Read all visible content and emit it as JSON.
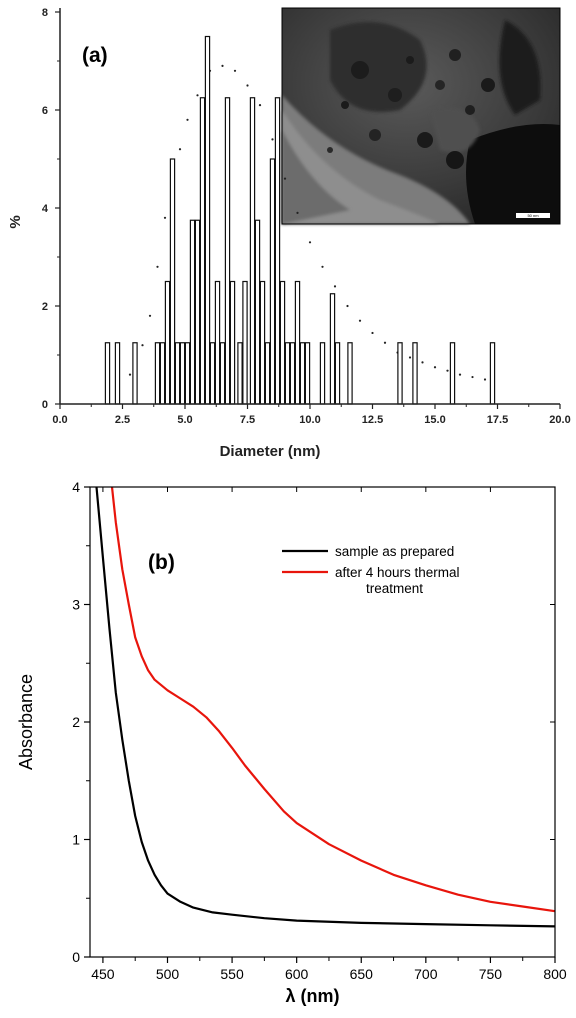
{
  "chart_data": [
    {
      "type": "bar",
      "panel_label": "(a)",
      "xlabel": "Diameter (nm)",
      "ylabel": "%",
      "xlim": [
        0,
        20
      ],
      "ylim": [
        0,
        8
      ],
      "xticks": [
        "0.0",
        "2.5",
        "5.0",
        "7.5",
        "10.0",
        "12.5",
        "15.0",
        "17.5",
        "20.0"
      ],
      "yticks": [
        "0",
        "2",
        "4",
        "6",
        "8"
      ],
      "bars": [
        {
          "x": 1.9,
          "y": 1.25
        },
        {
          "x": 2.3,
          "y": 1.25
        },
        {
          "x": 3.0,
          "y": 1.25
        },
        {
          "x": 3.9,
          "y": 1.25
        },
        {
          "x": 4.1,
          "y": 1.25
        },
        {
          "x": 4.3,
          "y": 2.5
        },
        {
          "x": 4.5,
          "y": 5.0
        },
        {
          "x": 4.7,
          "y": 1.25
        },
        {
          "x": 4.9,
          "y": 1.25
        },
        {
          "x": 5.1,
          "y": 1.25
        },
        {
          "x": 5.3,
          "y": 3.75
        },
        {
          "x": 5.5,
          "y": 3.75
        },
        {
          "x": 5.7,
          "y": 6.25
        },
        {
          "x": 5.9,
          "y": 7.5
        },
        {
          "x": 6.1,
          "y": 1.25
        },
        {
          "x": 6.3,
          "y": 2.5
        },
        {
          "x": 6.5,
          "y": 1.25
        },
        {
          "x": 6.7,
          "y": 6.25
        },
        {
          "x": 6.9,
          "y": 2.5
        },
        {
          "x": 7.2,
          "y": 1.25
        },
        {
          "x": 7.4,
          "y": 2.5
        },
        {
          "x": 7.7,
          "y": 6.25
        },
        {
          "x": 7.9,
          "y": 3.75
        },
        {
          "x": 8.1,
          "y": 2.5
        },
        {
          "x": 8.3,
          "y": 1.25
        },
        {
          "x": 8.5,
          "y": 5.0
        },
        {
          "x": 8.7,
          "y": 6.25
        },
        {
          "x": 8.9,
          "y": 2.5
        },
        {
          "x": 9.1,
          "y": 1.25
        },
        {
          "x": 9.3,
          "y": 1.25
        },
        {
          "x": 9.5,
          "y": 2.5
        },
        {
          "x": 9.7,
          "y": 1.25
        },
        {
          "x": 9.9,
          "y": 1.25
        },
        {
          "x": 10.5,
          "y": 1.25
        },
        {
          "x": 10.9,
          "y": 2.25
        },
        {
          "x": 11.1,
          "y": 1.25
        },
        {
          "x": 11.6,
          "y": 1.25
        },
        {
          "x": 13.6,
          "y": 1.25
        },
        {
          "x": 14.2,
          "y": 1.25
        },
        {
          "x": 15.7,
          "y": 1.25
        },
        {
          "x": 17.3,
          "y": 1.25
        }
      ],
      "fit_curve": [
        {
          "x": 3.6,
          "y": 1.8
        },
        {
          "x": 3.9,
          "y": 2.8
        },
        {
          "x": 4.2,
          "y": 3.8
        },
        {
          "x": 4.5,
          "y": 4.6
        },
        {
          "x": 4.8,
          "y": 5.2
        },
        {
          "x": 5.1,
          "y": 5.8
        },
        {
          "x": 5.5,
          "y": 6.3
        },
        {
          "x": 6.0,
          "y": 6.8
        },
        {
          "x": 6.5,
          "y": 6.9
        },
        {
          "x": 7.0,
          "y": 6.8
        },
        {
          "x": 7.5,
          "y": 6.5
        },
        {
          "x": 8.0,
          "y": 6.1
        },
        {
          "x": 8.5,
          "y": 5.4
        },
        {
          "x": 9.0,
          "y": 4.6
        },
        {
          "x": 9.5,
          "y": 3.9
        },
        {
          "x": 10.0,
          "y": 3.3
        },
        {
          "x": 10.5,
          "y": 2.8
        },
        {
          "x": 11.0,
          "y": 2.4
        },
        {
          "x": 11.5,
          "y": 2.0
        },
        {
          "x": 12.0,
          "y": 1.7
        },
        {
          "x": 12.5,
          "y": 1.45
        },
        {
          "x": 13.0,
          "y": 1.25
        },
        {
          "x": 13.5,
          "y": 1.05
        },
        {
          "x": 14.0,
          "y": 0.95
        },
        {
          "x": 14.5,
          "y": 0.85
        },
        {
          "x": 15.0,
          "y": 0.75
        },
        {
          "x": 15.5,
          "y": 0.68
        },
        {
          "x": 16.0,
          "y": 0.6
        },
        {
          "x": 16.5,
          "y": 0.55
        },
        {
          "x": 17.0,
          "y": 0.5
        },
        {
          "x": 2.3,
          "y": 0.6
        },
        {
          "x": 2.8,
          "y": 0.6
        },
        {
          "x": 3.3,
          "y": 1.2
        }
      ],
      "inset": {
        "description": "TEM micrograph",
        "scale_text": "50 nm"
      }
    },
    {
      "type": "line",
      "panel_label": "(b)",
      "xlabel": "λ (nm)",
      "ylabel": "Absorbance",
      "xlim": [
        440,
        800
      ],
      "ylim": [
        0,
        4
      ],
      "xticks": [
        "450",
        "500",
        "550",
        "600",
        "650",
        "700",
        "750",
        "800"
      ],
      "yticks": [
        "0",
        "1",
        "2",
        "3",
        "4"
      ],
      "legend_position": "top-right",
      "series": [
        {
          "name": "sample as prepared",
          "color": "#000000",
          "points": [
            [
              445,
              4.0
            ],
            [
              450,
              3.4
            ],
            [
              455,
              2.8
            ],
            [
              460,
              2.25
            ],
            [
              465,
              1.85
            ],
            [
              470,
              1.5
            ],
            [
              475,
              1.2
            ],
            [
              480,
              0.98
            ],
            [
              485,
              0.82
            ],
            [
              490,
              0.7
            ],
            [
              495,
              0.61
            ],
            [
              500,
              0.54
            ],
            [
              510,
              0.47
            ],
            [
              520,
              0.42
            ],
            [
              535,
              0.38
            ],
            [
              550,
              0.36
            ],
            [
              575,
              0.33
            ],
            [
              600,
              0.31
            ],
            [
              650,
              0.29
            ],
            [
              700,
              0.28
            ],
            [
              750,
              0.27
            ],
            [
              800,
              0.26
            ]
          ]
        },
        {
          "name": "after 4 hours thermal treatment",
          "color": "#e8150c",
          "points": [
            [
              457,
              4.0
            ],
            [
              460,
              3.7
            ],
            [
              465,
              3.3
            ],
            [
              470,
              3.0
            ],
            [
              475,
              2.72
            ],
            [
              480,
              2.56
            ],
            [
              485,
              2.44
            ],
            [
              490,
              2.36
            ],
            [
              500,
              2.27
            ],
            [
              510,
              2.2
            ],
            [
              520,
              2.13
            ],
            [
              530,
              2.04
            ],
            [
              540,
              1.92
            ],
            [
              550,
              1.78
            ],
            [
              560,
              1.63
            ],
            [
              575,
              1.43
            ],
            [
              590,
              1.24
            ],
            [
              600,
              1.14
            ],
            [
              625,
              0.96
            ],
            [
              650,
              0.82
            ],
            [
              675,
              0.7
            ],
            [
              700,
              0.61
            ],
            [
              725,
              0.53
            ],
            [
              750,
              0.47
            ],
            [
              775,
              0.43
            ],
            [
              800,
              0.39
            ]
          ]
        }
      ]
    }
  ]
}
